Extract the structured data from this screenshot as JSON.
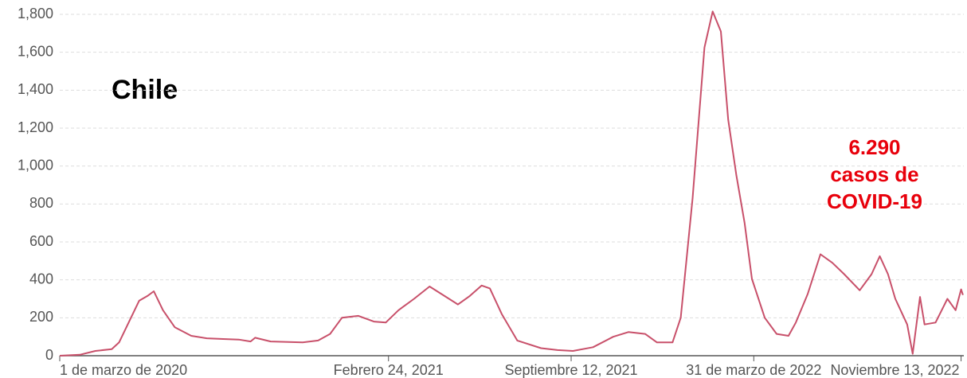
{
  "chart_data": {
    "type": "line",
    "title": "Chile",
    "annotation": [
      "6.290",
      "casos de",
      "COVID-19"
    ],
    "annotation_color": "#e8000b",
    "x": [
      "2020-03-01",
      "2020-03-23",
      "2020-04-09",
      "2020-04-27",
      "2020-05-05",
      "2020-05-18",
      "2020-05-27",
      "2020-06-05",
      "2020-06-12",
      "2020-06-22",
      "2020-07-05",
      "2020-07-23",
      "2020-08-09",
      "2020-08-27",
      "2020-09-13",
      "2020-09-26",
      "2020-10-01",
      "2020-10-18",
      "2020-11-22",
      "2020-12-09",
      "2020-12-22",
      "2021-01-04",
      "2021-01-22",
      "2021-02-08",
      "2021-02-21",
      "2021-03-07",
      "2021-03-24",
      "2021-04-10",
      "2021-04-28",
      "2021-05-11",
      "2021-05-24",
      "2021-06-06",
      "2021-06-15",
      "2021-06-28",
      "2021-07-15",
      "2021-08-10",
      "2021-08-28",
      "2021-09-14",
      "2021-10-06",
      "2021-10-28",
      "2021-11-14",
      "2021-12-02",
      "2021-12-15",
      "2022-01-01",
      "2022-01-10",
      "2022-01-23",
      "2022-02-05",
      "2022-02-14",
      "2022-02-23",
      "2022-03-03",
      "2022-03-12",
      "2022-03-21",
      "2022-03-29",
      "2022-04-12",
      "2022-04-25",
      "2022-05-08",
      "2022-05-16",
      "2022-05-29",
      "2022-06-12",
      "2022-06-25",
      "2022-07-08",
      "2022-07-25",
      "2022-08-07",
      "2022-08-16",
      "2022-08-25",
      "2022-09-02",
      "2022-09-15",
      "2022-09-21",
      "2022-09-29",
      "2022-10-04",
      "2022-10-16",
      "2022-10-29",
      "2022-11-07",
      "2022-11-13",
      "2022-11-15"
    ],
    "series": [
      {
        "name": "Chile",
        "color": "#c8506a",
        "values": [
          0,
          5,
          25,
          35,
          70,
          200,
          290,
          315,
          340,
          240,
          150,
          105,
          92,
          88,
          85,
          75,
          95,
          75,
          70,
          80,
          115,
          200,
          210,
          180,
          175,
          240,
          300,
          365,
          310,
          270,
          315,
          370,
          355,
          220,
          80,
          40,
          30,
          25,
          45,
          100,
          125,
          115,
          70,
          70,
          200,
          830,
          1625,
          1815,
          1710,
          1245,
          950,
          700,
          405,
          200,
          115,
          105,
          175,
          325,
          535,
          490,
          430,
          345,
          430,
          525,
          430,
          300,
          165,
          10,
          310,
          165,
          175,
          300,
          240,
          350,
          320
        ]
      }
    ],
    "xlim": [
      "2020-03-01",
      "2022-11-16"
    ],
    "xticks": [
      {
        "value": "2020-03-01",
        "label": "1 de marzo de 2020"
      },
      {
        "value": "2021-02-24",
        "label": "Febrero 24, 2021"
      },
      {
        "value": "2021-09-12",
        "label": "Septiembre 12, 2021"
      },
      {
        "value": "2022-03-31",
        "label": "31 de marzo de 2022"
      },
      {
        "value": "2022-11-13",
        "label": "Noviembre 13, 2022"
      }
    ],
    "ylim": [
      0,
      1800
    ],
    "yticks": [
      0,
      200,
      400,
      600,
      800,
      {
        "value": 1000,
        "label": "1,000"
      },
      {
        "value": 1200,
        "label": "1,200"
      },
      {
        "value": 1400,
        "label": "1,400"
      },
      {
        "value": 1600,
        "label": "1,600"
      },
      {
        "value": 1800,
        "label": "1,800"
      }
    ],
    "grid": true
  }
}
